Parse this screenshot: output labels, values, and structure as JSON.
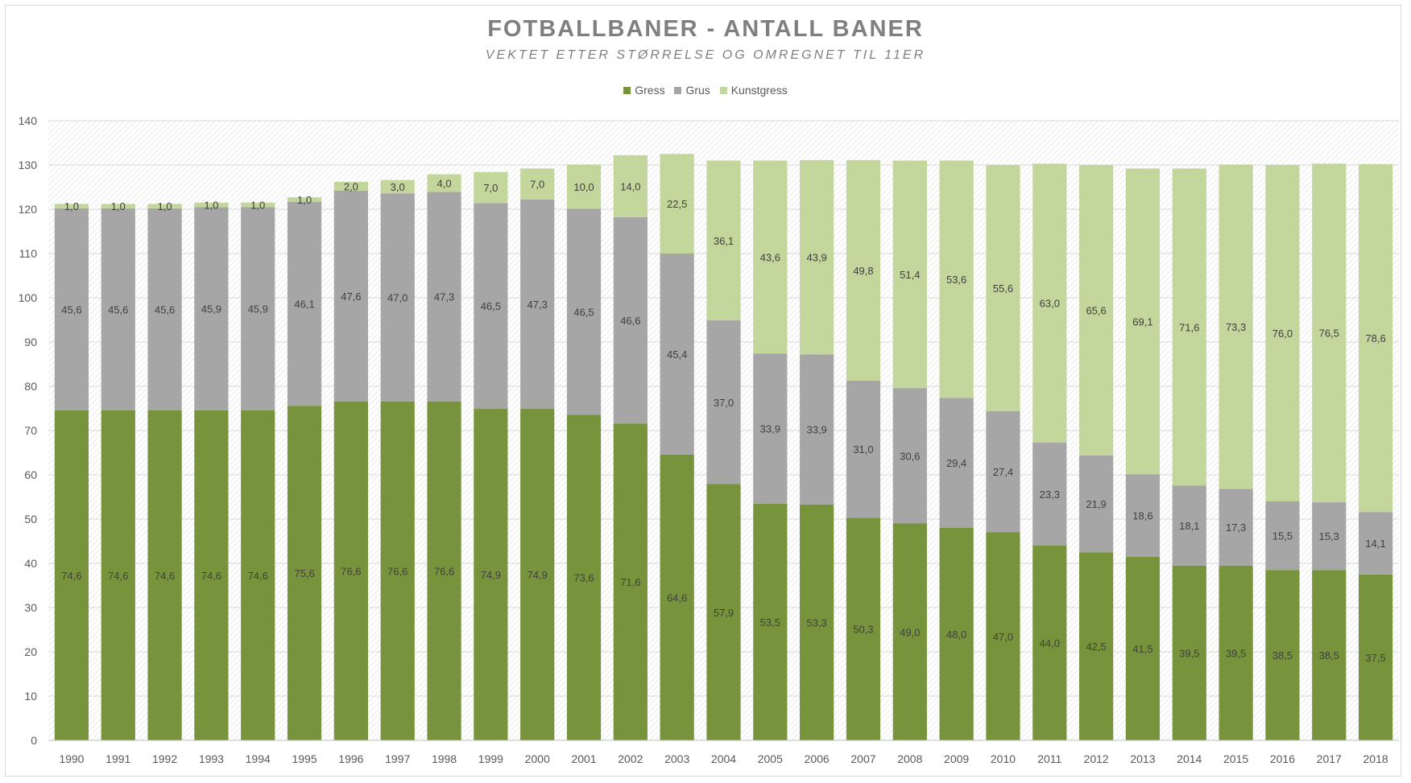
{
  "chart_data": {
    "type": "bar",
    "stacked": true,
    "title": "FOTBALLBANER - ANTALL BANER",
    "subtitle": "VEKTET ETTER STØRRELSE OG OMREGNET TIL 11ER",
    "xlabel": "",
    "ylabel": "",
    "ylim": [
      0,
      140
    ],
    "yticks": [
      "0",
      "10",
      "20",
      "30",
      "40",
      "50",
      "60",
      "70",
      "80",
      "90",
      "100",
      "110",
      "120",
      "130",
      "140"
    ],
    "grid": true,
    "legend_position": "top",
    "categories": [
      "1990",
      "1991",
      "1992",
      "1993",
      "1994",
      "1995",
      "1996",
      "1997",
      "1998",
      "1999",
      "2000",
      "2001",
      "2002",
      "2003",
      "2004",
      "2005",
      "2006",
      "2007",
      "2008",
      "2009",
      "2010",
      "2011",
      "2012",
      "2013",
      "2014",
      "2015",
      "2016",
      "2017",
      "2018"
    ],
    "series": [
      {
        "name": "Gress",
        "color": "#77933c",
        "values": [
          74.6,
          74.6,
          74.6,
          74.6,
          74.6,
          75.6,
          76.6,
          76.6,
          76.6,
          74.9,
          74.9,
          73.6,
          71.6,
          64.6,
          57.9,
          53.5,
          53.3,
          50.3,
          49.0,
          48.0,
          47.0,
          44.0,
          42.5,
          41.5,
          39.5,
          39.5,
          38.5,
          38.5,
          37.5
        ],
        "labels": [
          "74,6",
          "74,6",
          "74,6",
          "74,6",
          "74,6",
          "75,6",
          "76,6",
          "76,6",
          "76,6",
          "74,9",
          "74,9",
          "73,6",
          "71,6",
          "64,6",
          "57,9",
          "53,5",
          "53,3",
          "50,3",
          "49,0",
          "48,0",
          "47,0",
          "44,0",
          "42,5",
          "41,5",
          "39,5",
          "39,5",
          "38,5",
          "38,5",
          "37,5"
        ]
      },
      {
        "name": "Grus",
        "color": "#a6a6a6",
        "values": [
          45.6,
          45.6,
          45.6,
          45.9,
          45.9,
          46.1,
          47.6,
          47.0,
          47.3,
          46.5,
          47.3,
          46.5,
          46.6,
          45.4,
          37.0,
          33.9,
          33.9,
          31.0,
          30.6,
          29.4,
          27.4,
          23.3,
          21.9,
          18.6,
          18.1,
          17.3,
          15.5,
          15.3,
          14.1
        ],
        "labels": [
          "45,6",
          "45,6",
          "45,6",
          "45,9",
          "45,9",
          "46,1",
          "47,6",
          "47,0",
          "47,3",
          "46,5",
          "47,3",
          "46,5",
          "46,6",
          "45,4",
          "37,0",
          "33,9",
          "33,9",
          "31,0",
          "30,6",
          "29,4",
          "27,4",
          "23,3",
          "21,9",
          "18,6",
          "18,1",
          "17,3",
          "15,5",
          "15,3",
          "14,1"
        ]
      },
      {
        "name": "Kunstgress",
        "color": "#c3d69b",
        "values": [
          1.0,
          1.0,
          1.0,
          1.0,
          1.0,
          1.0,
          2.0,
          3.0,
          4.0,
          7.0,
          7.0,
          10.0,
          14.0,
          22.5,
          36.1,
          43.6,
          43.9,
          49.8,
          51.4,
          53.6,
          55.6,
          63.0,
          65.6,
          69.1,
          71.6,
          73.3,
          76.0,
          76.5,
          78.6
        ],
        "labels": [
          "1,0",
          "1,0",
          "1,0",
          "1,0",
          "1,0",
          "1,0",
          "2,0",
          "3,0",
          "4,0",
          "7,0",
          "7,0",
          "10,0",
          "14,0",
          "22,5",
          "36,1",
          "43,6",
          "43,9",
          "49,8",
          "51,4",
          "53,6",
          "55,6",
          "63,0",
          "65,6",
          "69,1",
          "71,6",
          "73,3",
          "76,0",
          "76,5",
          "78,6"
        ]
      }
    ]
  }
}
